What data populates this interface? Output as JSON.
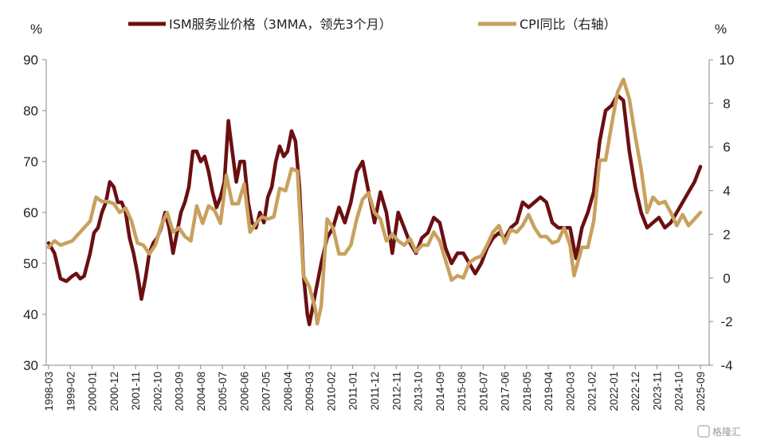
{
  "chart_data": {
    "type": "line",
    "left_unit": "%",
    "right_unit": "%",
    "y_left": {
      "min": 30,
      "max": 90,
      "step": 10
    },
    "y_right": {
      "min": -4,
      "max": 10,
      "step": 2
    },
    "grid": false,
    "legend_position": "top",
    "x_tick_labels": [
      "1998-03",
      "1999-02",
      "2000-01",
      "2000-12",
      "2001-11",
      "2002-10",
      "2003-09",
      "2004-08",
      "2005-07",
      "2006-06",
      "2007-05",
      "2008-04",
      "2009-03",
      "2010-02",
      "2011-01",
      "2011-12",
      "2012-11",
      "2013-10",
      "2014-09",
      "2015-08",
      "2016-07",
      "2017-06",
      "2018-05",
      "2019-04",
      "2020-03",
      "2021-02",
      "2022-01",
      "2022-12",
      "2023-11",
      "2024-10",
      "2025-09"
    ],
    "series": [
      {
        "name": "ISM服务业价格（3MMA，领先3个月）",
        "axis": "left",
        "color": "#6b0f12",
        "points": [
          [
            "1998-03",
            54
          ],
          [
            "1998-06",
            52
          ],
          [
            "1998-09",
            47
          ],
          [
            "1998-12",
            46.5
          ],
          [
            "1999-03",
            47.5
          ],
          [
            "1999-05",
            48
          ],
          [
            "1999-07",
            47
          ],
          [
            "1999-09",
            47.5
          ],
          [
            "1999-12",
            52
          ],
          [
            "2000-02",
            56
          ],
          [
            "2000-04",
            57
          ],
          [
            "2000-06",
            60
          ],
          [
            "2000-08",
            62
          ],
          [
            "2000-10",
            66
          ],
          [
            "2000-12",
            65
          ],
          [
            "2001-02",
            62
          ],
          [
            "2001-04",
            62
          ],
          [
            "2001-06",
            60
          ],
          [
            "2001-08",
            55
          ],
          [
            "2001-10",
            52
          ],
          [
            "2001-12",
            48
          ],
          [
            "2002-02",
            43
          ],
          [
            "2002-04",
            47
          ],
          [
            "2002-06",
            52
          ],
          [
            "2002-08",
            54
          ],
          [
            "2002-10",
            55
          ],
          [
            "2002-12",
            57
          ],
          [
            "2003-02",
            60
          ],
          [
            "2003-04",
            57
          ],
          [
            "2003-06",
            52
          ],
          [
            "2003-08",
            56
          ],
          [
            "2003-10",
            60
          ],
          [
            "2003-12",
            62
          ],
          [
            "2004-02",
            65
          ],
          [
            "2004-04",
            72
          ],
          [
            "2004-06",
            72
          ],
          [
            "2004-08",
            70
          ],
          [
            "2004-10",
            71
          ],
          [
            "2004-12",
            68
          ],
          [
            "2005-02",
            64
          ],
          [
            "2005-04",
            61
          ],
          [
            "2005-06",
            63
          ],
          [
            "2005-08",
            66
          ],
          [
            "2005-10",
            78
          ],
          [
            "2005-12",
            72
          ],
          [
            "2006-02",
            66
          ],
          [
            "2006-04",
            70
          ],
          [
            "2006-06",
            70
          ],
          [
            "2006-08",
            62
          ],
          [
            "2006-10",
            58
          ],
          [
            "2006-12",
            57
          ],
          [
            "2007-02",
            60
          ],
          [
            "2007-04",
            58
          ],
          [
            "2007-06",
            63
          ],
          [
            "2007-08",
            65
          ],
          [
            "2007-10",
            70
          ],
          [
            "2007-12",
            73
          ],
          [
            "2008-02",
            71
          ],
          [
            "2008-04",
            72
          ],
          [
            "2008-06",
            76
          ],
          [
            "2008-08",
            74
          ],
          [
            "2008-10",
            65
          ],
          [
            "2008-12",
            48
          ],
          [
            "2009-02",
            40
          ],
          [
            "2009-03",
            38
          ],
          [
            "2009-06",
            44
          ],
          [
            "2009-09",
            50
          ],
          [
            "2009-12",
            55
          ],
          [
            "2010-03",
            57
          ],
          [
            "2010-06",
            61
          ],
          [
            "2010-09",
            58
          ],
          [
            "2010-12",
            62
          ],
          [
            "2011-03",
            68
          ],
          [
            "2011-06",
            70
          ],
          [
            "2011-09",
            64
          ],
          [
            "2011-12",
            58
          ],
          [
            "2012-03",
            64
          ],
          [
            "2012-06",
            60
          ],
          [
            "2012-09",
            52
          ],
          [
            "2012-12",
            60
          ],
          [
            "2013-03",
            57
          ],
          [
            "2013-06",
            54
          ],
          [
            "2013-09",
            52
          ],
          [
            "2013-12",
            55
          ],
          [
            "2014-03",
            56
          ],
          [
            "2014-06",
            59
          ],
          [
            "2014-09",
            58
          ],
          [
            "2014-12",
            53
          ],
          [
            "2015-03",
            50
          ],
          [
            "2015-06",
            52
          ],
          [
            "2015-09",
            52
          ],
          [
            "2015-12",
            50
          ],
          [
            "2016-03",
            48
          ],
          [
            "2016-06",
            50
          ],
          [
            "2016-09",
            53
          ],
          [
            "2016-12",
            55
          ],
          [
            "2017-03",
            56
          ],
          [
            "2017-06",
            55
          ],
          [
            "2017-09",
            57
          ],
          [
            "2017-12",
            58
          ],
          [
            "2018-03",
            62
          ],
          [
            "2018-06",
            61
          ],
          [
            "2018-09",
            62
          ],
          [
            "2018-12",
            63
          ],
          [
            "2019-03",
            62
          ],
          [
            "2019-06",
            58
          ],
          [
            "2019-09",
            57
          ],
          [
            "2019-12",
            57
          ],
          [
            "2020-03",
            57
          ],
          [
            "2020-06",
            51
          ],
          [
            "2020-09",
            57
          ],
          [
            "2020-12",
            60
          ],
          [
            "2021-03",
            64
          ],
          [
            "2021-06",
            74
          ],
          [
            "2021-09",
            80
          ],
          [
            "2021-12",
            81
          ],
          [
            "2022-03",
            83
          ],
          [
            "2022-06",
            82
          ],
          [
            "2022-09",
            72
          ],
          [
            "2022-12",
            65
          ],
          [
            "2023-03",
            60
          ],
          [
            "2023-06",
            57
          ],
          [
            "2023-09",
            58
          ],
          [
            "2023-12",
            59
          ],
          [
            "2024-03",
            57
          ],
          [
            "2024-06",
            58
          ],
          [
            "2024-09",
            60
          ],
          [
            "2024-12",
            62
          ],
          [
            "2025-03",
            64
          ],
          [
            "2025-06",
            66
          ],
          [
            "2025-09",
            69
          ]
        ]
      },
      {
        "name": "CPI同比（右轴）",
        "axis": "right",
        "color": "#c8a15f",
        "points": [
          [
            "1998-03",
            1.4
          ],
          [
            "1998-06",
            1.7
          ],
          [
            "1998-09",
            1.5
          ],
          [
            "1998-12",
            1.6
          ],
          [
            "1999-03",
            1.7
          ],
          [
            "1999-06",
            2.0
          ],
          [
            "1999-09",
            2.3
          ],
          [
            "1999-12",
            2.6
          ],
          [
            "2000-03",
            3.7
          ],
          [
            "2000-06",
            3.5
          ],
          [
            "2000-09",
            3.5
          ],
          [
            "2000-12",
            3.4
          ],
          [
            "2001-03",
            3.0
          ],
          [
            "2001-06",
            3.2
          ],
          [
            "2001-09",
            2.6
          ],
          [
            "2001-12",
            1.6
          ],
          [
            "2002-03",
            1.5
          ],
          [
            "2002-06",
            1.1
          ],
          [
            "2002-09",
            1.5
          ],
          [
            "2002-12",
            2.4
          ],
          [
            "2003-03",
            3.0
          ],
          [
            "2003-06",
            2.1
          ],
          [
            "2003-09",
            2.3
          ],
          [
            "2003-12",
            1.9
          ],
          [
            "2004-03",
            1.7
          ],
          [
            "2004-06",
            3.3
          ],
          [
            "2004-09",
            2.5
          ],
          [
            "2004-12",
            3.3
          ],
          [
            "2005-03",
            3.1
          ],
          [
            "2005-06",
            2.5
          ],
          [
            "2005-09",
            4.7
          ],
          [
            "2005-12",
            3.4
          ],
          [
            "2006-03",
            3.4
          ],
          [
            "2006-06",
            4.3
          ],
          [
            "2006-09",
            2.1
          ],
          [
            "2006-12",
            2.5
          ],
          [
            "2007-03",
            2.8
          ],
          [
            "2007-06",
            2.7
          ],
          [
            "2007-09",
            2.8
          ],
          [
            "2007-12",
            4.1
          ],
          [
            "2008-03",
            4.0
          ],
          [
            "2008-06",
            5.0
          ],
          [
            "2008-09",
            4.9
          ],
          [
            "2008-12",
            0.1
          ],
          [
            "2009-03",
            -0.4
          ],
          [
            "2009-06",
            -1.4
          ],
          [
            "2009-07",
            -2.1
          ],
          [
            "2009-09",
            -1.3
          ],
          [
            "2009-12",
            2.7
          ],
          [
            "2010-03",
            2.3
          ],
          [
            "2010-06",
            1.1
          ],
          [
            "2010-09",
            1.1
          ],
          [
            "2010-12",
            1.5
          ],
          [
            "2011-03",
            2.7
          ],
          [
            "2011-06",
            3.6
          ],
          [
            "2011-09",
            3.9
          ],
          [
            "2011-12",
            3.0
          ],
          [
            "2012-03",
            2.7
          ],
          [
            "2012-06",
            1.7
          ],
          [
            "2012-09",
            2.0
          ],
          [
            "2012-12",
            1.7
          ],
          [
            "2013-03",
            1.5
          ],
          [
            "2013-06",
            1.8
          ],
          [
            "2013-09",
            1.2
          ],
          [
            "2013-12",
            1.5
          ],
          [
            "2014-03",
            1.5
          ],
          [
            "2014-06",
            2.1
          ],
          [
            "2014-09",
            1.7
          ],
          [
            "2014-12",
            0.8
          ],
          [
            "2015-03",
            -0.1
          ],
          [
            "2015-06",
            0.1
          ],
          [
            "2015-09",
            0.0
          ],
          [
            "2015-12",
            0.7
          ],
          [
            "2016-03",
            0.9
          ],
          [
            "2016-06",
            1.0
          ],
          [
            "2016-09",
            1.5
          ],
          [
            "2016-12",
            2.1
          ],
          [
            "2017-03",
            2.4
          ],
          [
            "2017-06",
            1.6
          ],
          [
            "2017-09",
            2.2
          ],
          [
            "2017-12",
            2.1
          ],
          [
            "2018-03",
            2.4
          ],
          [
            "2018-06",
            2.9
          ],
          [
            "2018-09",
            2.3
          ],
          [
            "2018-12",
            1.9
          ],
          [
            "2019-03",
            1.9
          ],
          [
            "2019-06",
            1.6
          ],
          [
            "2019-09",
            1.7
          ],
          [
            "2019-12",
            2.3
          ],
          [
            "2020-03",
            1.5
          ],
          [
            "2020-05",
            0.1
          ],
          [
            "2020-09",
            1.4
          ],
          [
            "2020-12",
            1.4
          ],
          [
            "2021-03",
            2.6
          ],
          [
            "2021-06",
            5.4
          ],
          [
            "2021-09",
            5.4
          ],
          [
            "2021-12",
            7.0
          ],
          [
            "2022-03",
            8.5
          ],
          [
            "2022-06",
            9.1
          ],
          [
            "2022-09",
            8.2
          ],
          [
            "2022-12",
            6.5
          ],
          [
            "2023-03",
            5.0
          ],
          [
            "2023-06",
            3.0
          ],
          [
            "2023-09",
            3.7
          ],
          [
            "2023-12",
            3.4
          ],
          [
            "2024-03",
            3.5
          ],
          [
            "2024-06",
            3.0
          ],
          [
            "2024-09",
            2.4
          ],
          [
            "2024-12",
            2.9
          ],
          [
            "2025-03",
            2.4
          ],
          [
            "2025-06",
            2.7
          ],
          [
            "2025-09",
            3.0
          ]
        ]
      }
    ]
  },
  "watermark": "格隆汇"
}
